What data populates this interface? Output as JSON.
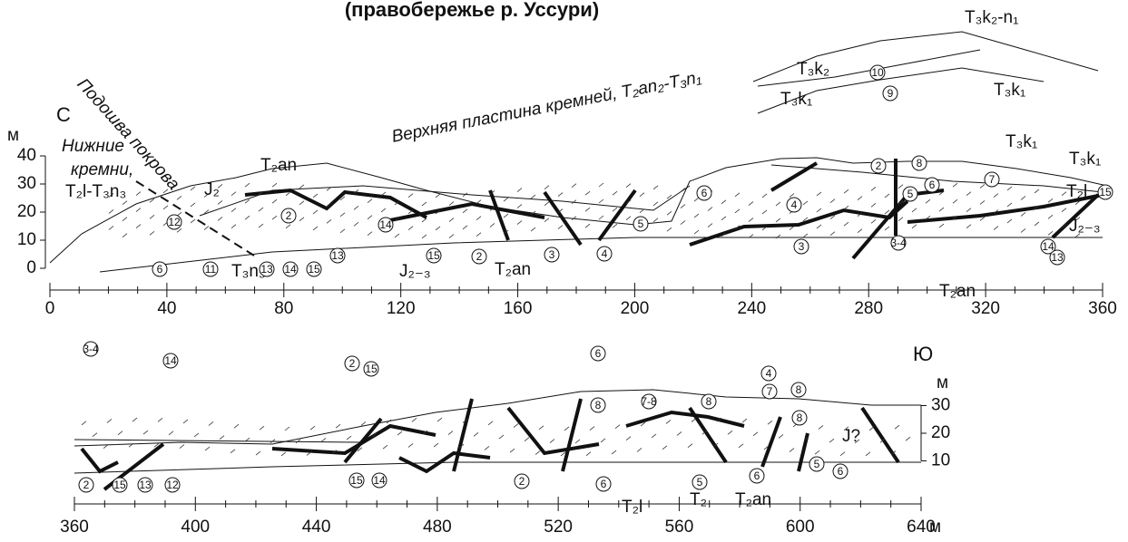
{
  "title": "(правобережье р. Уссури)",
  "north": "С",
  "south": "Ю",
  "upper_panel": {
    "y_unit": "м",
    "yticks": [
      0,
      10,
      20,
      30,
      40
    ],
    "xticks": [
      0,
      40,
      80,
      120,
      160,
      200,
      240,
      280,
      320,
      360
    ],
    "labels": {
      "base_of_cover": "Подошва покрова",
      "upper_sheet": "Верхняя пластина кремней, T₂an₂-T₃n₁",
      "lower_cherts": [
        "Нижние",
        "кремни,",
        "T₂l-T₃n₃"
      ]
    },
    "formations": [
      "T₃k₂-n₁",
      "T₃k₂",
      "T₃k₁",
      "T₃k₁",
      "T₃k₁",
      "T₃k₁",
      "T₂l",
      "T₂an",
      "J₂",
      "T₃n₃",
      "J₂₋₃",
      "T₂an",
      "J₂₋₃",
      "T₂an"
    ],
    "circles": [
      "12",
      "6",
      "11",
      "13",
      "14",
      "15",
      "2",
      "14",
      "13",
      "15",
      "2",
      "3",
      "4",
      "5",
      "6",
      "4",
      "5",
      "6",
      "8",
      "7",
      "2",
      "3",
      "3-4",
      "14",
      "13",
      "15",
      "10",
      "9"
    ]
  },
  "lower_panel": {
    "y_unit": "м",
    "yticks": [
      10,
      20,
      30
    ],
    "xticks": [
      360,
      400,
      440,
      480,
      520,
      560,
      600,
      640
    ],
    "x_unit": "м",
    "formations": [
      "T₂l",
      "T₂",
      "T₂an",
      "J?"
    ],
    "circles": [
      "3-4",
      "14",
      "2",
      "15",
      "13",
      "12",
      "2",
      "15",
      "15",
      "14",
      "2",
      "6",
      "5",
      "6",
      "6",
      "8",
      "7-8",
      "8",
      "4",
      "7",
      "8",
      "8",
      "5",
      "6"
    ]
  }
}
